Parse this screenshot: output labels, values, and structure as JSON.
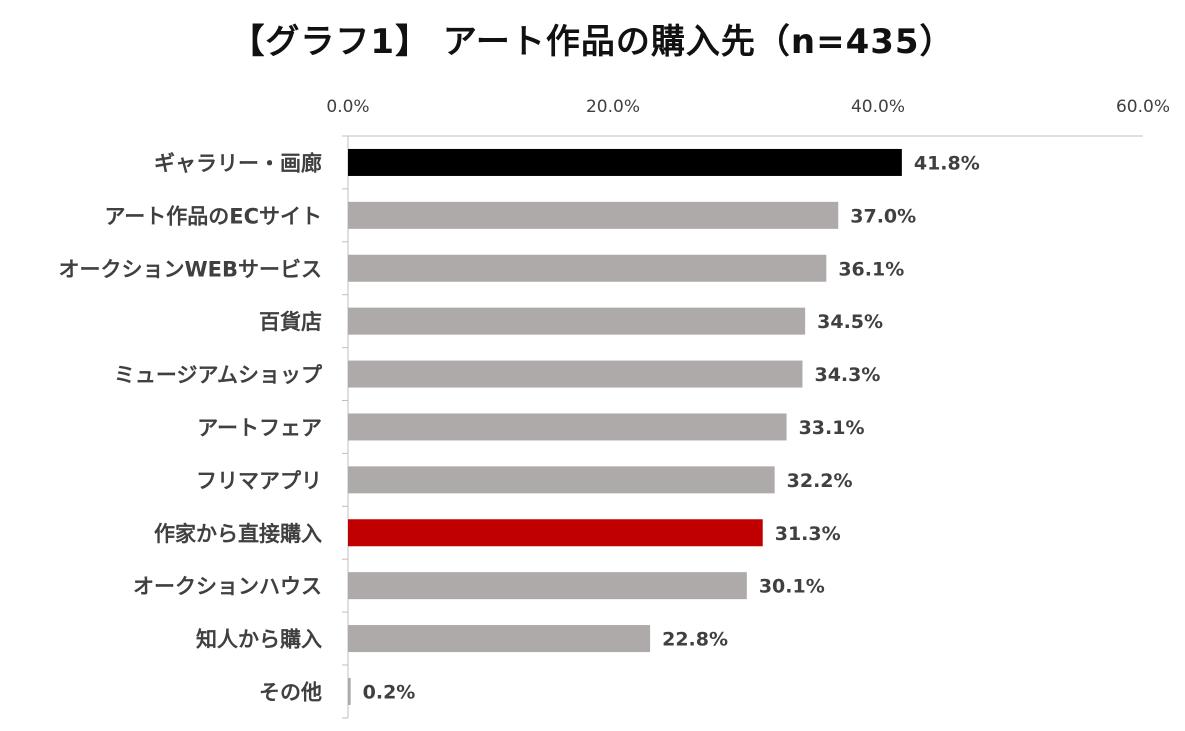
{
  "chart_data": {
    "type": "bar",
    "orientation": "horizontal",
    "title": "【グラフ1】 アート作品の購入先（n=435）",
    "xlabel": "",
    "ylabel": "",
    "xlim": [
      0,
      60
    ],
    "x_ticks": [
      "0.0%",
      "20.0%",
      "40.0%",
      "60.0%"
    ],
    "x_tick_values": [
      0,
      20,
      40,
      60
    ],
    "x_axis_position": "top",
    "grid": false,
    "legend": "none",
    "categories": [
      "ギャラリー・画廊",
      "アート作品のECサイト",
      "オークションWEBサービス",
      "百貨店",
      "ミュージアムショップ",
      "アートフェア",
      "フリマアプリ",
      "作家から直接購入",
      "オークションハウス",
      "知人から購入",
      "その他"
    ],
    "values": [
      41.8,
      37.0,
      36.1,
      34.5,
      34.3,
      33.1,
      32.2,
      31.3,
      30.1,
      22.8,
      0.2
    ],
    "value_labels": [
      "41.8%",
      "37.0%",
      "36.1%",
      "34.5%",
      "34.3%",
      "33.1%",
      "32.2%",
      "31.3%",
      "30.1%",
      "22.8%",
      "0.2%"
    ],
    "bar_colors": [
      "#000000",
      "#aeaaaa",
      "#aeaaaa",
      "#aeaaaa",
      "#aeaaaa",
      "#aeaaaa",
      "#aeaaaa",
      "#c00000",
      "#aeaaaa",
      "#aeaaaa",
      "#aeaaaa"
    ],
    "colors": {
      "default_bar": "#aeaaaa",
      "highlight_top": "#000000",
      "highlight_direct": "#c00000",
      "axis": "#bfbfbf",
      "text": "#404040"
    }
  }
}
